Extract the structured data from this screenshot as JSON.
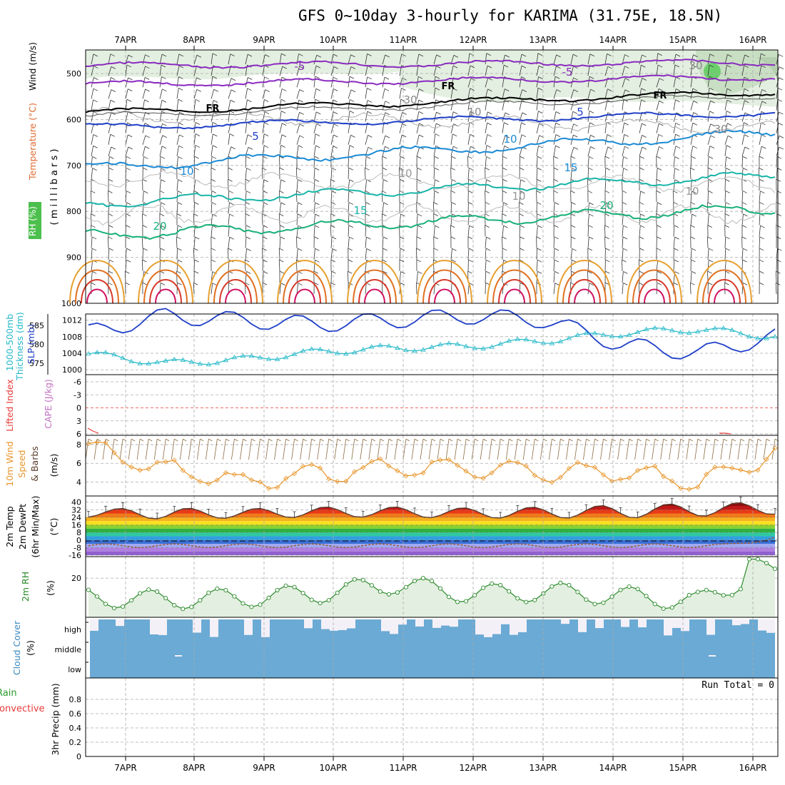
{
  "title": "GFS 0~10day 3-hourly for KARIMA (31.75E, 18.5N)",
  "dates": [
    "7APR",
    "8APR",
    "9APR",
    "10APR",
    "11APR",
    "12APR",
    "13APR",
    "14APR",
    "15APR",
    "16APR"
  ],
  "colors": {
    "sea_level_pressure": "#1f3fc8",
    "thickness": "#22b8c8",
    "wind_speed": "#e8952a",
    "barb": "#8a6a40",
    "dewpoint": "#9a5a3a",
    "relative_humidity": "#2a8a2a",
    "cloud": "#6aaad4",
    "lifted_index": "#e83a3a",
    "cape": "#c070c0"
  },
  "panels": {
    "upper": {
      "label_wind": "Wind (m/s)",
      "label_temp": "Temperature (°C)",
      "label_rh": "RH (%)",
      "label_mb": "( m i l l i b a r s )",
      "ticks": [
        "500",
        "600",
        "700",
        "800",
        "900",
        "1000"
      ],
      "contour_labels": [
        "-5",
        "-5",
        "FR",
        "FR",
        "FR",
        "5",
        "5",
        "10",
        "10",
        "10",
        "15",
        "15",
        "20",
        "20",
        "30",
        "30",
        "30",
        "10",
        "10",
        "10"
      ]
    },
    "slp": {
      "label_thickness": "1000-500mb Thickness (dm)",
      "label_slp": "SLP (mb)",
      "left_ticks": [
        "585",
        "580",
        "575"
      ],
      "right_ticks": [
        "1012",
        "1008",
        "1004",
        "1000"
      ]
    },
    "stability": {
      "label_li": "Lifted Index",
      "label_cape": "CAPE (J/kg)",
      "ticks": [
        "-6",
        "-3",
        "0",
        "3",
        "6"
      ]
    },
    "wind10": {
      "label_a": "10m Wind",
      "label_b": "Speed",
      "label_c": "& Barbs",
      "unit": "(m/s)",
      "ticks": [
        "8",
        "6",
        "4"
      ]
    },
    "temp": {
      "label_a": "2m Temp",
      "label_b": "2m DewPt",
      "label_c": "(6hr Min/Max)",
      "unit": "(°C)",
      "ticks": [
        "40",
        "32",
        "24",
        "16",
        "8",
        "0",
        "-8",
        "-16"
      ]
    },
    "rh": {
      "label": "2m RH",
      "unit": "(%)",
      "ticks": [
        "20"
      ]
    },
    "cloud": {
      "label": "Cloud Cover",
      "unit": "(%)",
      "levels": [
        "high",
        "middle",
        "low"
      ]
    },
    "precip": {
      "label_a": "Total / Rain",
      "label_b": "Convective",
      "unit": "3hr Precip (mm)",
      "ticks": [
        "0.8",
        "0.6",
        "0.4",
        "0.2",
        "0"
      ],
      "run_total": "Run Total = 0"
    }
  },
  "chart_data": [
    {
      "type": "line",
      "name": "SLP",
      "x": [
        "7APR",
        "8APR",
        "9APR",
        "10APR",
        "11APR",
        "12APR",
        "13APR",
        "14APR",
        "15APR",
        "16APR"
      ],
      "values": [
        1009,
        1013,
        1012,
        1011,
        1012,
        1013,
        1012,
        1006,
        1004,
        1008
      ],
      "ylim": [
        1000,
        1013
      ]
    },
    {
      "type": "line",
      "name": "1000-500mb Thickness",
      "x": [
        "7APR",
        "8APR",
        "9APR",
        "10APR",
        "11APR",
        "12APR",
        "13APR",
        "14APR",
        "15APR",
        "16APR"
      ],
      "values": [
        577.5,
        575,
        576,
        578,
        579,
        579.5,
        581,
        583,
        584,
        582
      ],
      "ylim": [
        572,
        588
      ]
    },
    {
      "type": "line",
      "name": "10m Wind Speed",
      "x": [
        "7APR",
        "8APR",
        "9APR",
        "10APR",
        "11APR",
        "12APR",
        "13APR",
        "14APR",
        "15APR",
        "16APR"
      ],
      "values": [
        7.5,
        5.5,
        4,
        5,
        5.5,
        5.5,
        5,
        5,
        4,
        7
      ],
      "ylim": [
        2,
        9
      ]
    },
    {
      "type": "line",
      "name": "2m Temp",
      "x": [
        "7APR",
        "8APR",
        "9APR",
        "10APR",
        "11APR",
        "12APR",
        "13APR",
        "14APR",
        "15APR",
        "16APR"
      ],
      "max": [
        33,
        34,
        33,
        35,
        35,
        34,
        35,
        37,
        39,
        40
      ],
      "min": [
        24,
        22,
        23,
        24,
        24,
        23,
        23,
        23,
        25,
        27
      ],
      "ylim": [
        -16,
        42
      ]
    },
    {
      "type": "line",
      "name": "2m RH",
      "x": [
        "7APR",
        "8APR",
        "9APR",
        "10APR",
        "11APR",
        "12APR",
        "13APR",
        "14APR",
        "15APR",
        "16APR"
      ],
      "values": [
        10,
        9,
        10,
        12,
        17,
        12,
        13,
        11,
        8,
        27
      ],
      "ylim": [
        0,
        30
      ]
    },
    {
      "type": "bar",
      "name": "3hr Precip",
      "values": [
        0,
        0,
        0,
        0,
        0,
        0,
        0,
        0,
        0,
        0
      ],
      "ylim": [
        0,
        1
      ]
    }
  ]
}
